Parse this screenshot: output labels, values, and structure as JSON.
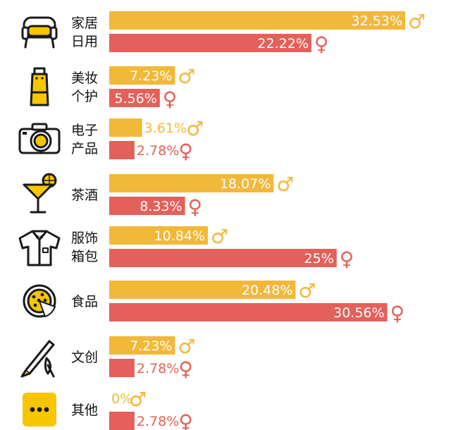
{
  "colors": {
    "male": "#F2B83A",
    "female": "#E4605A",
    "icon": "#F7C600",
    "ink": "#1a1a1a"
  },
  "symbols": {
    "male": "♂",
    "female": "♀"
  },
  "chart_data": {
    "type": "bar",
    "orientation": "horizontal",
    "value_unit": "%",
    "categories": [
      "家居\n日用",
      "美妆\n个护",
      "电子\n产品",
      "茶酒",
      "服饰\n箱包",
      "食品",
      "文创",
      "其他"
    ],
    "category_icons": [
      "armchair-icon",
      "cosmetic-tube-icon",
      "camera-icon",
      "cocktail-icon",
      "shirt-icon",
      "pizza-icon",
      "pen-brush-icon",
      "more-dots-icon"
    ],
    "series": [
      {
        "name": "♂",
        "values": [
          32.53,
          7.23,
          3.61,
          18.07,
          10.84,
          20.48,
          7.23,
          0
        ],
        "labels": [
          "32.53%",
          "7.23%",
          "3.61%",
          "18.07%",
          "10.84%",
          "20.48%",
          "7.23%",
          "0%"
        ]
      },
      {
        "name": "♀",
        "values": [
          22.22,
          5.56,
          2.78,
          8.33,
          25,
          30.56,
          2.78,
          2.78
        ],
        "labels": [
          "22.22%",
          "5.56%",
          "2.78%",
          "8.33%",
          "25%",
          "30.56%",
          "2.78%",
          "2.78%"
        ]
      }
    ],
    "xlim": [
      0,
      32.53
    ],
    "grid": false,
    "legend": "none"
  }
}
